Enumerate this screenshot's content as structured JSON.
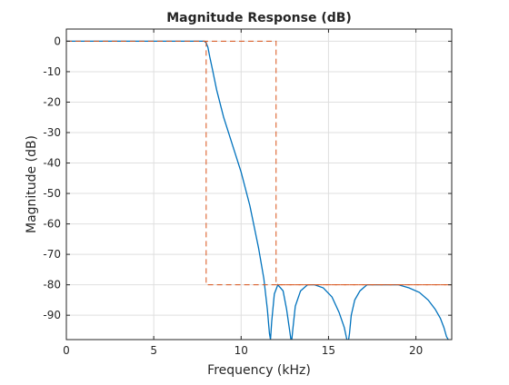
{
  "chart_data": {
    "type": "line",
    "title": "Magnitude Response (dB)",
    "xlabel": "Frequency (kHz)",
    "ylabel": "Magnitude (dB)",
    "xlim": [
      0,
      22.05
    ],
    "ylim": [
      -98,
      4
    ],
    "grid": true,
    "x_ticks": [
      0,
      5,
      10,
      15,
      20
    ],
    "y_ticks": [
      0,
      -10,
      -20,
      -30,
      -40,
      -50,
      -60,
      -70,
      -80,
      -90
    ],
    "series": [
      {
        "color": "#0072BD",
        "x": [
          0,
          7.9,
          8.0,
          8.1,
          8.2,
          8.35,
          8.6,
          9.0,
          9.5,
          10.0,
          10.5,
          11.0,
          11.3,
          11.5,
          11.62,
          11.68,
          11.75,
          11.9,
          12.1,
          12.4,
          12.6,
          12.75,
          12.85,
          12.9,
          12.95,
          13.1,
          13.4,
          13.8,
          14.2,
          14.7,
          15.2,
          15.6,
          15.9,
          16.05,
          16.15,
          16.2,
          16.3,
          16.5,
          16.8,
          17.2,
          17.8,
          18.4,
          19.0,
          19.6,
          20.2,
          20.7,
          21.1,
          21.4,
          21.6,
          21.75,
          21.85
        ],
        "y": [
          0,
          0,
          -0.5,
          -2,
          -5,
          -9,
          -16,
          -25,
          -34,
          -43,
          -54,
          -68,
          -78,
          -88,
          -96,
          -98,
          -92,
          -83,
          -80,
          -82,
          -88,
          -94,
          -98,
          -98,
          -95,
          -87,
          -82,
          -80,
          -80,
          -81,
          -84,
          -89,
          -94,
          -98,
          -98,
          -96,
          -90,
          -85,
          -82,
          -80,
          -80,
          -80,
          -80,
          -81,
          -82.5,
          -85,
          -88,
          -91,
          -94,
          -97,
          -98
        ]
      },
      {
        "name": "mask",
        "style": "dashed",
        "color": "#D95319",
        "x": [
          0,
          12,
          12,
          22.05
        ],
        "y": [
          0,
          0,
          -80,
          -80
        ]
      },
      {
        "name": "mask",
        "style": "dashed",
        "color": "#D95319",
        "x": [
          8,
          8,
          22.05
        ],
        "y": [
          0,
          -80,
          -80
        ]
      }
    ]
  }
}
